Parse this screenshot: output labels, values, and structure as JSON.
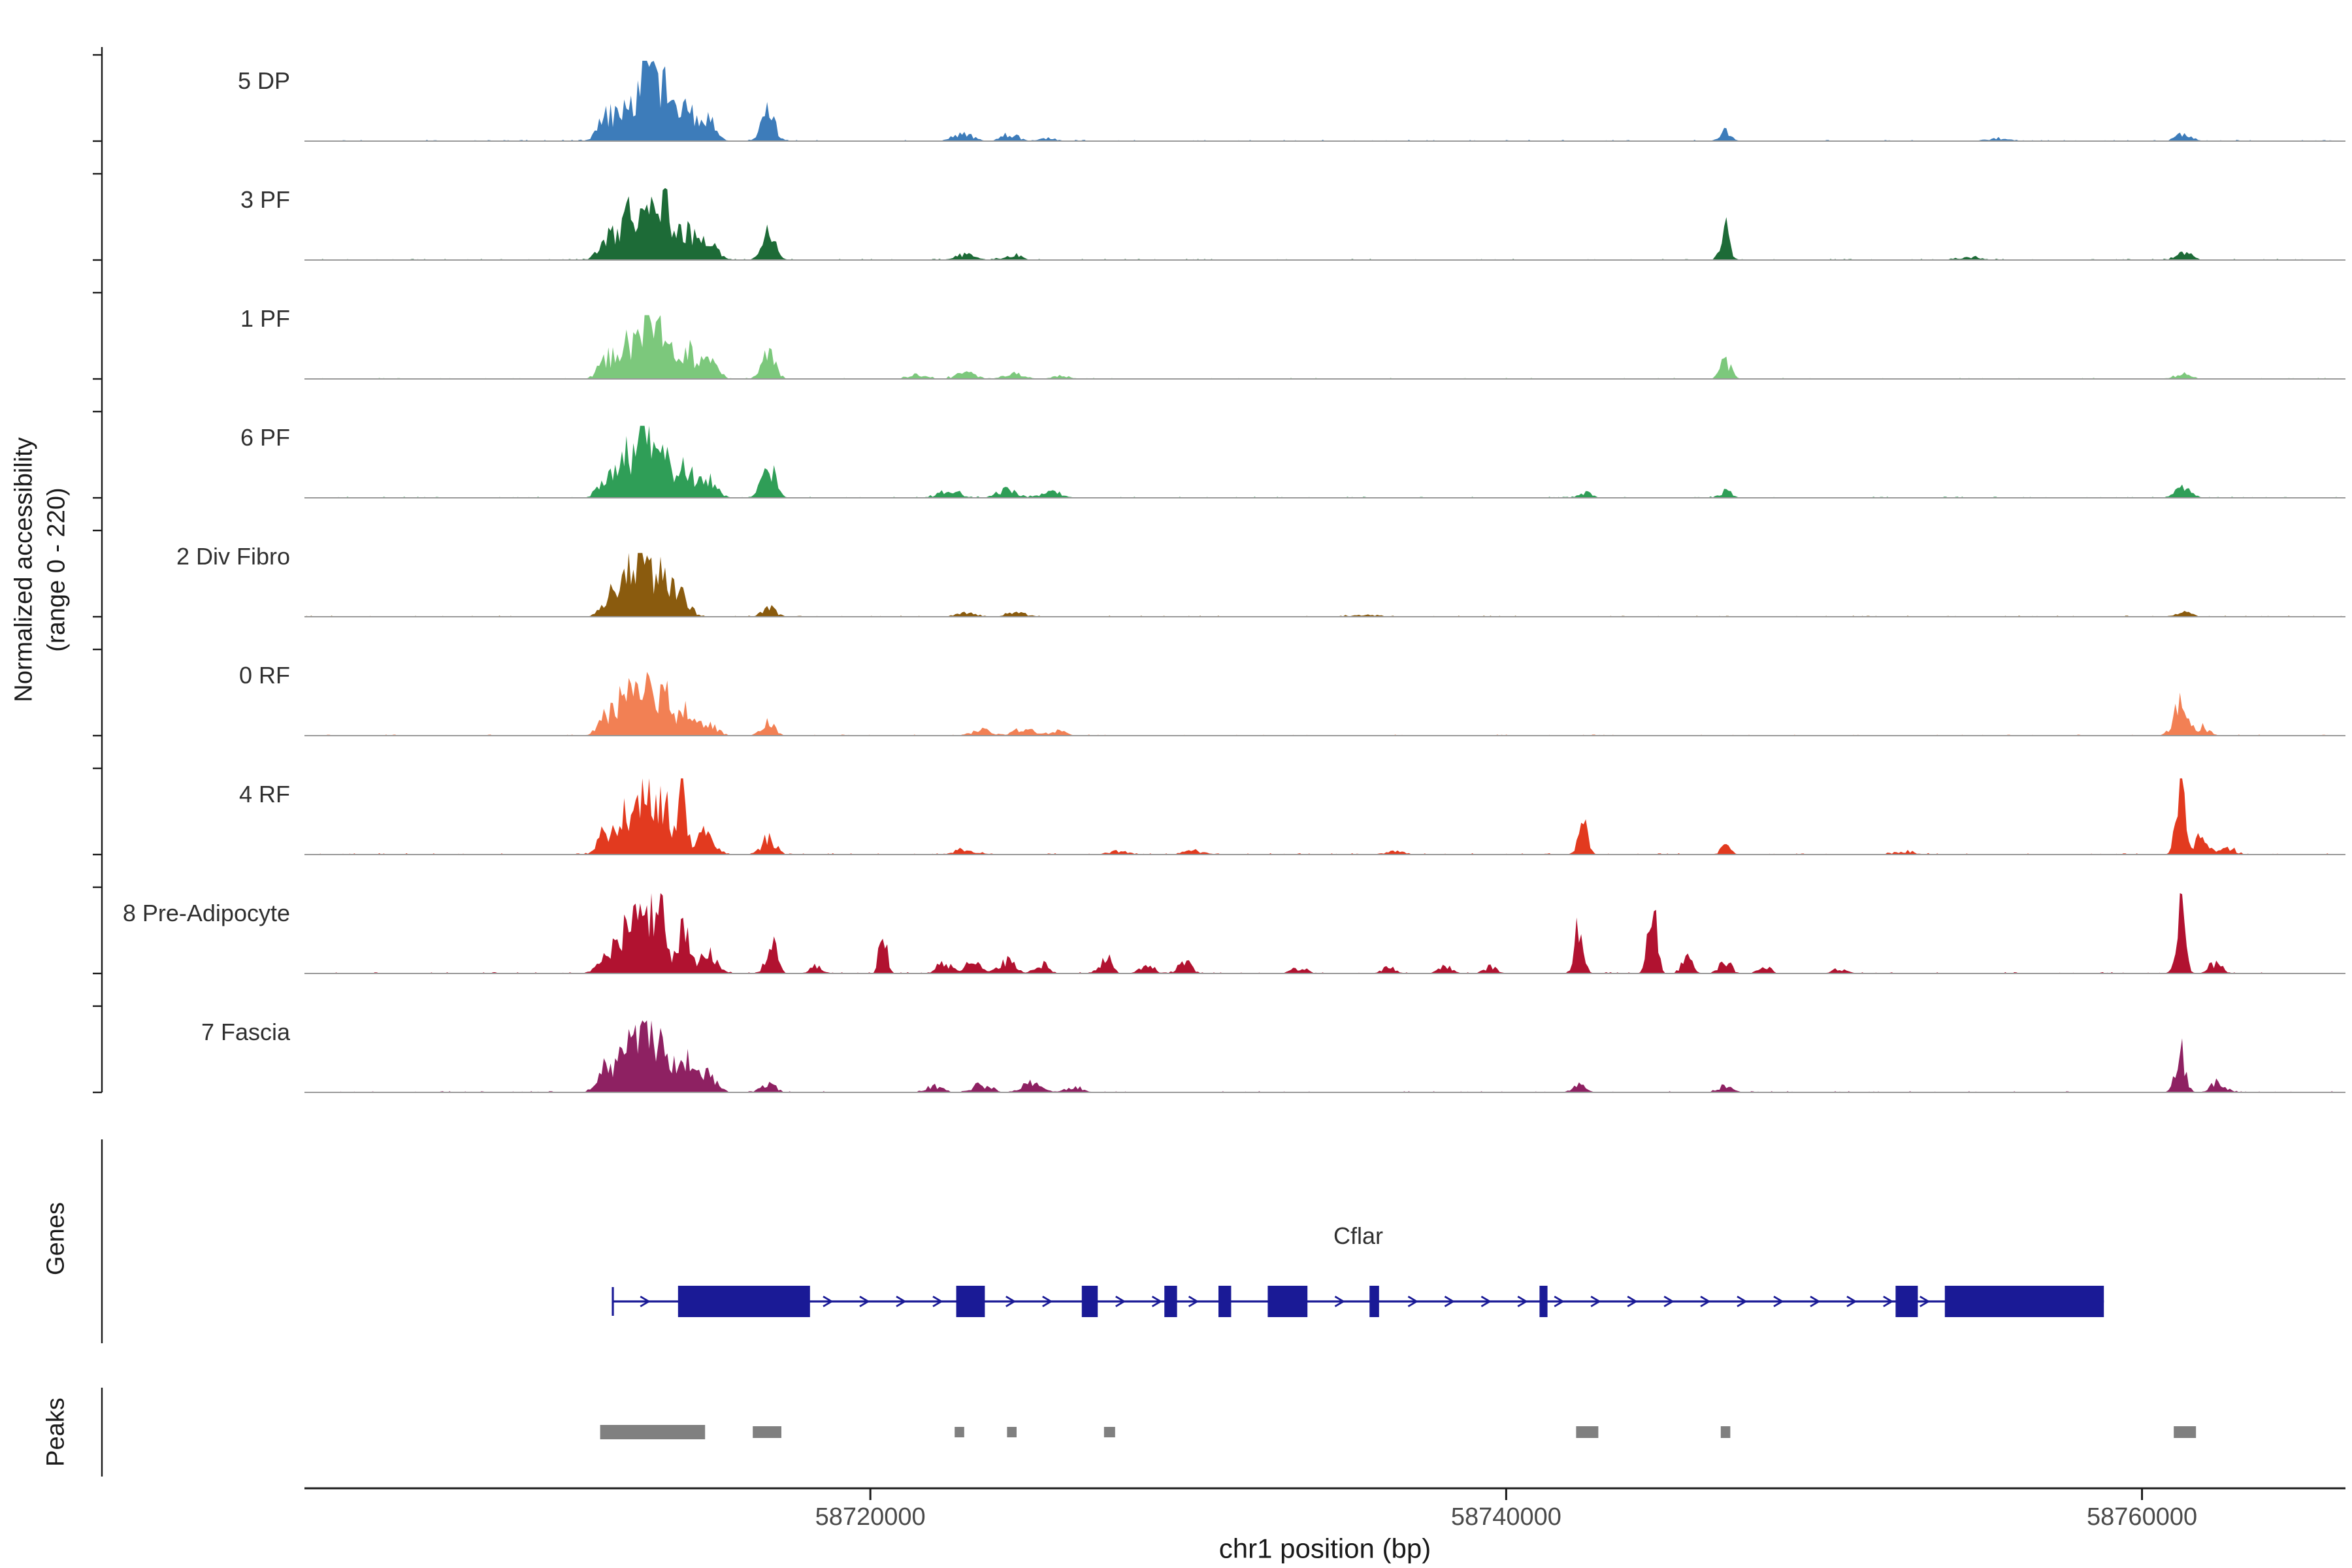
{
  "figure": {
    "y_axis_label_line1": "Normalized accessibility",
    "y_axis_label_line2": "(range 0 - 220)",
    "genes_section_label": "Genes",
    "peaks_section_label": "Peaks",
    "x_axis_label": "chr1 position (bp)"
  },
  "chart_data": {
    "type": "area",
    "title": "",
    "x_axis": {
      "label": "chr1 position (bp)",
      "chromosome": "chr1",
      "range_bp": [
        58702200,
        58766400
      ],
      "ticks": [
        58720000,
        58740000,
        58760000
      ]
    },
    "y_axis": {
      "label": "Normalized accessibility (range 0 - 220)",
      "per_track_range": [
        0,
        220
      ]
    },
    "tracks": [
      {
        "label": "5 DP",
        "color": "#3d7cba",
        "amp": 58,
        "peaks": [
          [
            58711700,
            250,
            0.3
          ],
          [
            58712300,
            230,
            0.55
          ],
          [
            58712900,
            220,
            1.0
          ],
          [
            58713500,
            240,
            0.72
          ],
          [
            58714200,
            250,
            0.45
          ],
          [
            58714900,
            260,
            0.25
          ],
          [
            58716800,
            210,
            0.38
          ],
          [
            58722900,
            300,
            0.1
          ],
          [
            58724400,
            260,
            0.09
          ],
          [
            58725600,
            220,
            0.05
          ],
          [
            58746900,
            190,
            0.12
          ],
          [
            58755500,
            400,
            0.03
          ],
          [
            58761300,
            240,
            0.1
          ]
        ]
      },
      {
        "label": "3 PF",
        "color": "#1d6b37",
        "amp": 52,
        "peaks": [
          [
            58711700,
            250,
            0.3
          ],
          [
            58712300,
            230,
            0.6
          ],
          [
            58712900,
            220,
            1.0
          ],
          [
            58713500,
            240,
            0.75
          ],
          [
            58714200,
            250,
            0.45
          ],
          [
            58714900,
            260,
            0.25
          ],
          [
            58716800,
            200,
            0.42
          ],
          [
            58723000,
            300,
            0.08
          ],
          [
            58724500,
            260,
            0.08
          ],
          [
            58746900,
            140,
            0.45
          ],
          [
            58754500,
            400,
            0.04
          ],
          [
            58761300,
            240,
            0.12
          ]
        ]
      },
      {
        "label": "1 PF",
        "color": "#7cc87c",
        "amp": 46,
        "peaks": [
          [
            58711700,
            250,
            0.32
          ],
          [
            58712300,
            230,
            0.6
          ],
          [
            58712900,
            220,
            1.0
          ],
          [
            58713500,
            240,
            0.72
          ],
          [
            58714200,
            250,
            0.48
          ],
          [
            58714900,
            260,
            0.28
          ],
          [
            58716800,
            210,
            0.4
          ],
          [
            58721500,
            260,
            0.07
          ],
          [
            58723000,
            300,
            0.1
          ],
          [
            58724500,
            300,
            0.08
          ],
          [
            58726000,
            260,
            0.06
          ],
          [
            58746900,
            160,
            0.3
          ],
          [
            58761300,
            240,
            0.1
          ]
        ]
      },
      {
        "label": "6 PF",
        "color": "#2f9e57",
        "amp": 52,
        "peaks": [
          [
            58711700,
            250,
            0.3
          ],
          [
            58712300,
            230,
            0.58
          ],
          [
            58712900,
            220,
            1.0
          ],
          [
            58713500,
            240,
            0.72
          ],
          [
            58714200,
            250,
            0.45
          ],
          [
            58714900,
            260,
            0.25
          ],
          [
            58716800,
            210,
            0.45
          ],
          [
            58722500,
            350,
            0.1
          ],
          [
            58724300,
            300,
            0.12
          ],
          [
            58725700,
            300,
            0.1
          ],
          [
            58742500,
            200,
            0.07
          ],
          [
            58746900,
            170,
            0.1
          ],
          [
            58761300,
            240,
            0.14
          ]
        ]
      },
      {
        "label": "2 Div Fibro",
        "color": "#8a5b0e",
        "amp": 46,
        "peaks": [
          [
            58711800,
            240,
            0.35
          ],
          [
            58712400,
            230,
            0.65
          ],
          [
            58712900,
            210,
            1.0
          ],
          [
            58713500,
            230,
            0.7
          ],
          [
            58714100,
            230,
            0.35
          ],
          [
            58716800,
            210,
            0.16
          ],
          [
            58723000,
            300,
            0.07
          ],
          [
            58724600,
            300,
            0.07
          ],
          [
            58735500,
            400,
            0.03
          ],
          [
            58761300,
            240,
            0.09
          ]
        ]
      },
      {
        "label": "0 RF",
        "color": "#f28054",
        "amp": 46,
        "peaks": [
          [
            58711700,
            250,
            0.35
          ],
          [
            58712300,
            230,
            0.65
          ],
          [
            58712900,
            220,
            1.0
          ],
          [
            58713500,
            240,
            0.7
          ],
          [
            58714200,
            250,
            0.42
          ],
          [
            58714900,
            260,
            0.22
          ],
          [
            58716800,
            210,
            0.2
          ],
          [
            58723500,
            300,
            0.09
          ],
          [
            58724800,
            300,
            0.11
          ],
          [
            58725900,
            260,
            0.07
          ],
          [
            58761200,
            210,
            0.5
          ],
          [
            58761900,
            200,
            0.14
          ]
        ]
      },
      {
        "label": "4 RF",
        "color": "#e23a1f",
        "amp": 55,
        "peaks": [
          [
            58711700,
            250,
            0.3
          ],
          [
            58712300,
            230,
            0.55
          ],
          [
            58712900,
            220,
            0.9
          ],
          [
            58713500,
            240,
            0.65
          ],
          [
            58714100,
            120,
            0.95
          ],
          [
            58714800,
            260,
            0.28
          ],
          [
            58716800,
            210,
            0.24
          ],
          [
            58723000,
            300,
            0.07
          ],
          [
            58727800,
            300,
            0.05
          ],
          [
            58730200,
            300,
            0.05
          ],
          [
            58736500,
            300,
            0.04
          ],
          [
            58742400,
            140,
            0.5
          ],
          [
            58746900,
            150,
            0.11
          ],
          [
            58752500,
            300,
            0.04
          ],
          [
            58761200,
            130,
            1.0
          ],
          [
            58761900,
            190,
            0.28
          ],
          [
            58762700,
            220,
            0.1
          ]
        ]
      },
      {
        "label": "8 Pre-Adipocyte",
        "color": "#b11230",
        "amp": 58,
        "peaks": [
          [
            58711700,
            250,
            0.32
          ],
          [
            58712300,
            230,
            0.6
          ],
          [
            58712900,
            220,
            1.0
          ],
          [
            58713400,
            150,
            0.85
          ],
          [
            58714100,
            200,
            0.55
          ],
          [
            58714900,
            260,
            0.25
          ],
          [
            58716900,
            170,
            0.38
          ],
          [
            58718300,
            180,
            0.1
          ],
          [
            58720400,
            110,
            0.6
          ],
          [
            58722300,
            200,
            0.16
          ],
          [
            58723200,
            250,
            0.14
          ],
          [
            58724300,
            250,
            0.16
          ],
          [
            58725400,
            200,
            0.12
          ],
          [
            58727400,
            170,
            0.22
          ],
          [
            58728700,
            200,
            0.14
          ],
          [
            58729900,
            200,
            0.16
          ],
          [
            58733500,
            250,
            0.06
          ],
          [
            58736300,
            200,
            0.08
          ],
          [
            58738100,
            200,
            0.1
          ],
          [
            58739500,
            200,
            0.08
          ],
          [
            58742300,
            130,
            0.62
          ],
          [
            58744600,
            130,
            1.0
          ],
          [
            58745700,
            170,
            0.2
          ],
          [
            58746900,
            180,
            0.16
          ],
          [
            58748100,
            200,
            0.09
          ],
          [
            58750500,
            220,
            0.06
          ],
          [
            58761200,
            140,
            0.78
          ],
          [
            58762300,
            200,
            0.14
          ]
        ]
      },
      {
        "label": "7 Fascia",
        "color": "#8e2162",
        "amp": 52,
        "peaks": [
          [
            58711700,
            250,
            0.35
          ],
          [
            58712300,
            230,
            0.6
          ],
          [
            58712900,
            220,
            1.0
          ],
          [
            58713500,
            240,
            0.7
          ],
          [
            58714200,
            250,
            0.45
          ],
          [
            58714900,
            260,
            0.25
          ],
          [
            58716800,
            210,
            0.15
          ],
          [
            58722000,
            260,
            0.09
          ],
          [
            58723500,
            300,
            0.11
          ],
          [
            58725100,
            300,
            0.13
          ],
          [
            58726400,
            260,
            0.09
          ],
          [
            58742300,
            190,
            0.13
          ],
          [
            58746900,
            200,
            0.1
          ],
          [
            58761200,
            160,
            0.58
          ],
          [
            58762400,
            220,
            0.15
          ]
        ]
      }
    ],
    "gene_track": {
      "section_label": "Genes",
      "gene": {
        "name": "Cflar",
        "color": "#1a1a96",
        "start": 58711900,
        "end": 58758800,
        "strand": "+",
        "exons": [
          [
            58713950,
            58718100
          ],
          [
            58722700,
            58723600
          ],
          [
            58726650,
            58727150
          ],
          [
            58729250,
            58729650
          ],
          [
            58730950,
            58731350
          ],
          [
            58732500,
            58733750
          ],
          [
            58735700,
            58736000
          ],
          [
            58741050,
            58741300
          ],
          [
            58752250,
            58752950
          ],
          [
            58753800,
            58758800
          ]
        ]
      }
    },
    "peaks_track": {
      "section_label": "Peaks",
      "color": "#808080",
      "intervals": [
        [
          58711500,
          58714800,
          11
        ],
        [
          58716300,
          58717200,
          9
        ],
        [
          58722650,
          58722950,
          8
        ],
        [
          58724300,
          58724600,
          8
        ],
        [
          58727350,
          58727700,
          8
        ],
        [
          58742200,
          58742900,
          9
        ],
        [
          58746750,
          58747050,
          9
        ],
        [
          58761000,
          58761700,
          9
        ]
      ]
    }
  }
}
